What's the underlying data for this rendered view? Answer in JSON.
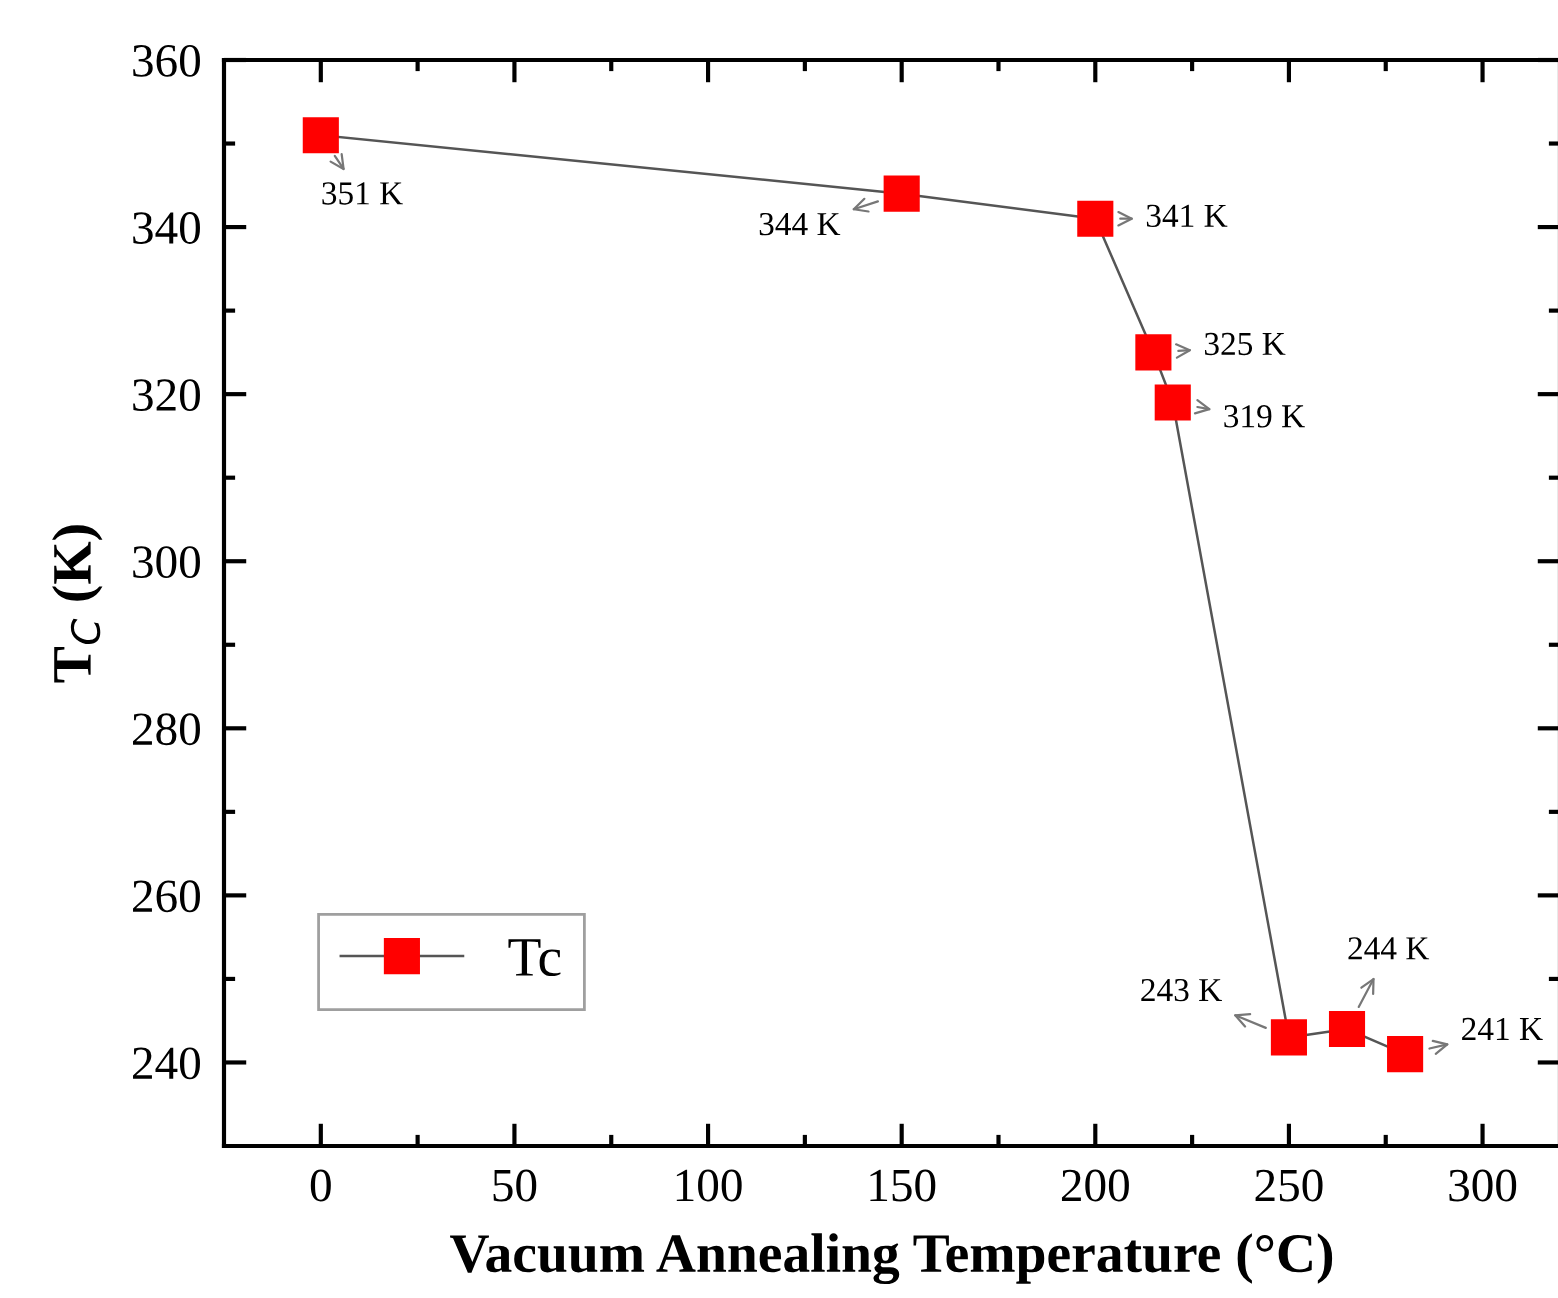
{
  "chart_data": {
    "type": "line",
    "xlabel": "Vacuum Annealing Temperature (°C)",
    "ylabel": "T$_{C}$ (K)",
    "x": [
      0,
      150,
      200,
      215,
      220,
      250,
      265,
      280
    ],
    "series": [
      {
        "name": "Tc",
        "color": "#ff0000",
        "values": [
          351,
          344,
          341,
          325,
          319,
          243,
          244,
          241
        ]
      }
    ],
    "marker": "square",
    "line_style": "solid",
    "legend": "bottom left",
    "grid": false,
    "xlim": [
      -25,
      320
    ],
    "xticks": [
      0,
      {
        "value": 25,
        "label": null
      },
      50,
      {
        "value": 75,
        "label": null
      },
      100,
      {
        "value": 125,
        "label": null
      },
      150,
      {
        "value": 175,
        "label": null
      },
      200,
      {
        "value": 225,
        "label": null
      },
      250,
      {
        "value": 275,
        "label": null
      },
      300
    ],
    "ylim": [
      230,
      360
    ],
    "yticks": [
      240,
      {
        "value": 250,
        "label": null
      },
      260,
      {
        "value": 270,
        "label": null
      },
      280,
      {
        "value": 290,
        "label": null
      },
      300,
      {
        "value": 310,
        "label": null
      },
      320,
      {
        "value": 330,
        "label": null
      },
      340,
      {
        "value": 350,
        "label": null
      },
      360
    ],
    "annotations": [
      {
        "text": "351 K",
        "x": 0,
        "y": 351
      },
      {
        "text": "344 K",
        "x": 150,
        "y": 344
      },
      {
        "text": "341 K",
        "x": 200,
        "y": 341
      },
      {
        "text": "325 K",
        "x": 215,
        "y": 325
      },
      {
        "text": "319 K",
        "x": 220,
        "y": 319
      },
      {
        "text": "243 K",
        "x": 250,
        "y": 243
      },
      {
        "text": "244 K",
        "x": 265,
        "y": 244
      },
      {
        "text": "241 K",
        "x": 280,
        "y": 241
      }
    ]
  }
}
